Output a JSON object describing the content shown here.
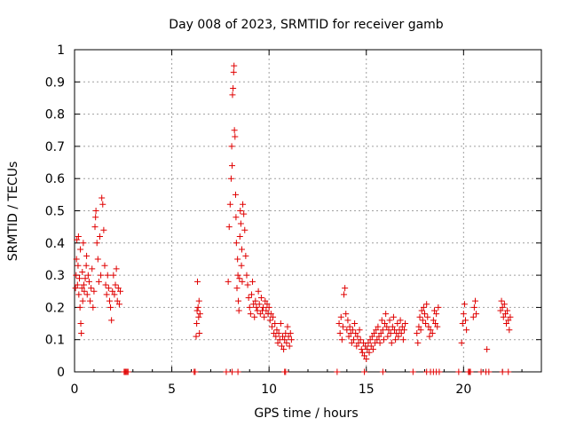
{
  "chart_data": {
    "type": "scatter",
    "title": "Day 008 of 2023, SRMTID for receiver gamb",
    "xlabel": "GPS time / hours",
    "ylabel": "SRMTID / TECUs",
    "xlim": [
      0,
      24
    ],
    "ylim": [
      0,
      1
    ],
    "xticks": [
      0,
      5,
      10,
      15,
      20
    ],
    "xtick_labels": [
      "0",
      "5",
      "10",
      "15",
      "20"
    ],
    "yticks": [
      0,
      0.1,
      0.2,
      0.3,
      0.4,
      0.5,
      0.6,
      0.7,
      0.8,
      0.9,
      1
    ],
    "ytick_labels": [
      "0",
      "0.1",
      "0.2",
      "0.3",
      "0.4",
      "0.5",
      "0.6",
      "0.7",
      "0.8",
      "0.9",
      "1"
    ],
    "grid": true,
    "marker": "plus",
    "color": "#e00000",
    "series": [
      {
        "name": "SRMTID",
        "points": [
          [
            0.05,
            0.26
          ],
          [
            0.08,
            0.3
          ],
          [
            0.1,
            0.35
          ],
          [
            0.12,
            0.41
          ],
          [
            0.15,
            0.27
          ],
          [
            0.18,
            0.33
          ],
          [
            0.2,
            0.42
          ],
          [
            0.22,
            0.24
          ],
          [
            0.25,
            0.29
          ],
          [
            0.28,
            0.2
          ],
          [
            0.3,
            0.38
          ],
          [
            0.32,
            0.15
          ],
          [
            0.35,
            0.12
          ],
          [
            0.38,
            0.26
          ],
          [
            0.4,
            0.31
          ],
          [
            0.42,
            0.22
          ],
          [
            0.45,
            0.4
          ],
          [
            0.48,
            0.27
          ],
          [
            0.5,
            0.25
          ],
          [
            0.55,
            0.29
          ],
          [
            0.6,
            0.33
          ],
          [
            0.62,
            0.36
          ],
          [
            0.65,
            0.24
          ],
          [
            0.7,
            0.3
          ],
          [
            0.75,
            0.28
          ],
          [
            0.8,
            0.22
          ],
          [
            0.85,
            0.26
          ],
          [
            0.9,
            0.32
          ],
          [
            0.95,
            0.2
          ],
          [
            1.0,
            0.25
          ],
          [
            1.05,
            0.45
          ],
          [
            1.08,
            0.48
          ],
          [
            1.1,
            0.5
          ],
          [
            1.15,
            0.4
          ],
          [
            1.2,
            0.35
          ],
          [
            1.25,
            0.28
          ],
          [
            1.3,
            0.42
          ],
          [
            1.35,
            0.3
          ],
          [
            1.4,
            0.54
          ],
          [
            1.45,
            0.52
          ],
          [
            1.5,
            0.44
          ],
          [
            1.55,
            0.33
          ],
          [
            1.6,
            0.27
          ],
          [
            1.65,
            0.24
          ],
          [
            1.7,
            0.3
          ],
          [
            1.75,
            0.26
          ],
          [
            1.8,
            0.22
          ],
          [
            1.85,
            0.2
          ],
          [
            1.9,
            0.16
          ],
          [
            1.95,
            0.25
          ],
          [
            2.0,
            0.3
          ],
          [
            2.05,
            0.24
          ],
          [
            2.1,
            0.27
          ],
          [
            2.15,
            0.32
          ],
          [
            2.2,
            0.22
          ],
          [
            2.25,
            0.26
          ],
          [
            2.3,
            0.21
          ],
          [
            2.35,
            0.25
          ],
          [
            6.25,
            0.11
          ],
          [
            6.28,
            0.15
          ],
          [
            6.3,
            0.19
          ],
          [
            6.32,
            0.28
          ],
          [
            6.35,
            0.2
          ],
          [
            6.38,
            0.17
          ],
          [
            6.4,
            0.22
          ],
          [
            6.42,
            0.12
          ],
          [
            6.45,
            0.18
          ],
          [
            7.9,
            0.28
          ],
          [
            7.95,
            0.45
          ],
          [
            8.0,
            0.52
          ],
          [
            8.05,
            0.6
          ],
          [
            8.08,
            0.7
          ],
          [
            8.1,
            0.64
          ],
          [
            8.12,
            0.86
          ],
          [
            8.15,
            0.88
          ],
          [
            8.18,
            0.93
          ],
          [
            8.2,
            0.95
          ],
          [
            8.22,
            0.75
          ],
          [
            8.25,
            0.73
          ],
          [
            8.28,
            0.55
          ],
          [
            8.3,
            0.48
          ],
          [
            8.32,
            0.4
          ],
          [
            8.35,
            0.26
          ],
          [
            8.38,
            0.35
          ],
          [
            8.4,
            0.3
          ],
          [
            8.42,
            0.22
          ],
          [
            8.45,
            0.19
          ],
          [
            8.48,
            0.29
          ],
          [
            8.5,
            0.42
          ],
          [
            8.52,
            0.5
          ],
          [
            8.55,
            0.46
          ],
          [
            8.58,
            0.33
          ],
          [
            8.6,
            0.38
          ],
          [
            8.62,
            0.28
          ],
          [
            8.65,
            0.52
          ],
          [
            8.7,
            0.49
          ],
          [
            8.75,
            0.44
          ],
          [
            8.8,
            0.36
          ],
          [
            8.85,
            0.3
          ],
          [
            8.9,
            0.27
          ],
          [
            8.95,
            0.23
          ],
          [
            9.0,
            0.2
          ],
          [
            9.05,
            0.18
          ],
          [
            9.1,
            0.24
          ],
          [
            9.15,
            0.28
          ],
          [
            9.2,
            0.21
          ],
          [
            9.25,
            0.17
          ],
          [
            9.3,
            0.22
          ],
          [
            9.35,
            0.2
          ],
          [
            9.4,
            0.19
          ],
          [
            9.45,
            0.25
          ],
          [
            9.5,
            0.21
          ],
          [
            9.55,
            0.18
          ],
          [
            9.6,
            0.23
          ],
          [
            9.65,
            0.19
          ],
          [
            9.7,
            0.2
          ],
          [
            9.75,
            0.17
          ],
          [
            9.8,
            0.22
          ],
          [
            9.85,
            0.19
          ],
          [
            9.9,
            0.21
          ],
          [
            9.95,
            0.18
          ],
          [
            10.0,
            0.2
          ],
          [
            10.05,
            0.16
          ],
          [
            10.1,
            0.18
          ],
          [
            10.15,
            0.14
          ],
          [
            10.2,
            0.17
          ],
          [
            10.25,
            0.12
          ],
          [
            10.3,
            0.15
          ],
          [
            10.35,
            0.11
          ],
          [
            10.4,
            0.13
          ],
          [
            10.45,
            0.09
          ],
          [
            10.5,
            0.12
          ],
          [
            10.55,
            0.1
          ],
          [
            10.6,
            0.15
          ],
          [
            10.65,
            0.08
          ],
          [
            10.7,
            0.11
          ],
          [
            10.75,
            0.07
          ],
          [
            10.8,
            0.1
          ],
          [
            10.85,
            0.12
          ],
          [
            10.9,
            0.09
          ],
          [
            10.95,
            0.14
          ],
          [
            11.0,
            0.11
          ],
          [
            11.05,
            0.08
          ],
          [
            11.1,
            0.12
          ],
          [
            11.15,
            0.1
          ],
          [
            13.6,
            0.15
          ],
          [
            13.65,
            0.12
          ],
          [
            13.7,
            0.17
          ],
          [
            13.75,
            0.1
          ],
          [
            13.8,
            0.14
          ],
          [
            13.85,
            0.24
          ],
          [
            13.9,
            0.26
          ],
          [
            13.95,
            0.18
          ],
          [
            14.0,
            0.13
          ],
          [
            14.05,
            0.16
          ],
          [
            14.1,
            0.11
          ],
          [
            14.15,
            0.14
          ],
          [
            14.2,
            0.12
          ],
          [
            14.25,
            0.09
          ],
          [
            14.3,
            0.13
          ],
          [
            14.35,
            0.1
          ],
          [
            14.4,
            0.15
          ],
          [
            14.45,
            0.12
          ],
          [
            14.5,
            0.08
          ],
          [
            14.55,
            0.11
          ],
          [
            14.6,
            0.09
          ],
          [
            14.65,
            0.13
          ],
          [
            14.7,
            0.1
          ],
          [
            14.75,
            0.07
          ],
          [
            14.8,
            0.06
          ],
          [
            14.85,
            0.09
          ],
          [
            14.9,
            0.05
          ],
          [
            14.95,
            0.08
          ],
          [
            15.0,
            0.04
          ],
          [
            15.05,
            0.07
          ],
          [
            15.1,
            0.09
          ],
          [
            15.15,
            0.06
          ],
          [
            15.2,
            0.1
          ],
          [
            15.25,
            0.08
          ],
          [
            15.3,
            0.11
          ],
          [
            15.35,
            0.07
          ],
          [
            15.4,
            0.12
          ],
          [
            15.45,
            0.09
          ],
          [
            15.5,
            0.13
          ],
          [
            15.55,
            0.1
          ],
          [
            15.6,
            0.14
          ],
          [
            15.65,
            0.11
          ],
          [
            15.7,
            0.09
          ],
          [
            15.75,
            0.12
          ],
          [
            15.8,
            0.16
          ],
          [
            15.85,
            0.13
          ],
          [
            15.9,
            0.1
          ],
          [
            15.95,
            0.15
          ],
          [
            16.0,
            0.18
          ],
          [
            16.05,
            0.14
          ],
          [
            16.1,
            0.11
          ],
          [
            16.15,
            0.13
          ],
          [
            16.2,
            0.16
          ],
          [
            16.25,
            0.12
          ],
          [
            16.3,
            0.09
          ],
          [
            16.35,
            0.14
          ],
          [
            16.4,
            0.17
          ],
          [
            16.45,
            0.13
          ],
          [
            16.5,
            0.1
          ],
          [
            16.55,
            0.12
          ],
          [
            16.6,
            0.15
          ],
          [
            16.65,
            0.11
          ],
          [
            16.7,
            0.13
          ],
          [
            16.75,
            0.16
          ],
          [
            16.8,
            0.12
          ],
          [
            16.85,
            0.14
          ],
          [
            16.9,
            0.1
          ],
          [
            16.95,
            0.13
          ],
          [
            17.0,
            0.15
          ],
          [
            17.6,
            0.12
          ],
          [
            17.65,
            0.09
          ],
          [
            17.7,
            0.14
          ],
          [
            17.75,
            0.17
          ],
          [
            17.8,
            0.13
          ],
          [
            17.85,
            0.19
          ],
          [
            17.9,
            0.16
          ],
          [
            17.95,
            0.2
          ],
          [
            18.0,
            0.18
          ],
          [
            18.05,
            0.15
          ],
          [
            18.1,
            0.21
          ],
          [
            18.15,
            0.17
          ],
          [
            18.2,
            0.14
          ],
          [
            18.25,
            0.11
          ],
          [
            18.3,
            0.13
          ],
          [
            18.4,
            0.12
          ],
          [
            18.45,
            0.16
          ],
          [
            18.5,
            0.19
          ],
          [
            18.55,
            0.15
          ],
          [
            18.6,
            0.18
          ],
          [
            18.65,
            0.14
          ],
          [
            18.7,
            0.2
          ],
          [
            19.9,
            0.09
          ],
          [
            19.95,
            0.15
          ],
          [
            20.0,
            0.18
          ],
          [
            20.05,
            0.21
          ],
          [
            20.1,
            0.16
          ],
          [
            20.15,
            0.13
          ],
          [
            20.5,
            0.17
          ],
          [
            20.55,
            0.2
          ],
          [
            20.6,
            0.22
          ],
          [
            20.65,
            0.18
          ],
          [
            21.2,
            0.07
          ],
          [
            21.9,
            0.19
          ],
          [
            21.95,
            0.22
          ],
          [
            22.0,
            0.2
          ],
          [
            22.05,
            0.17
          ],
          [
            22.1,
            0.21
          ],
          [
            22.15,
            0.18
          ],
          [
            22.2,
            0.15
          ],
          [
            22.25,
            0.19
          ],
          [
            22.3,
            0.16
          ],
          [
            22.35,
            0.13
          ],
          [
            22.4,
            0.17
          ],
          [
            2.55,
            0
          ],
          [
            2.6,
            0
          ],
          [
            2.65,
            0
          ],
          [
            2.7,
            0
          ],
          [
            2.75,
            0
          ],
          [
            6.15,
            0
          ],
          [
            6.2,
            0
          ],
          [
            7.8,
            0
          ],
          [
            8.1,
            0
          ],
          [
            8.4,
            0
          ],
          [
            10.8,
            0
          ],
          [
            10.85,
            0
          ],
          [
            13.5,
            0
          ],
          [
            14.9,
            0
          ],
          [
            15.85,
            0
          ],
          [
            17.4,
            0
          ],
          [
            18.1,
            0
          ],
          [
            18.3,
            0
          ],
          [
            18.45,
            0
          ],
          [
            18.6,
            0
          ],
          [
            18.75,
            0
          ],
          [
            19.75,
            0
          ],
          [
            20.25,
            0
          ],
          [
            20.3,
            0
          ],
          [
            20.35,
            0
          ],
          [
            20.9,
            0
          ],
          [
            21.15,
            0
          ],
          [
            21.3,
            0
          ],
          [
            22.0,
            0
          ],
          [
            22.3,
            0
          ]
        ]
      }
    ]
  }
}
